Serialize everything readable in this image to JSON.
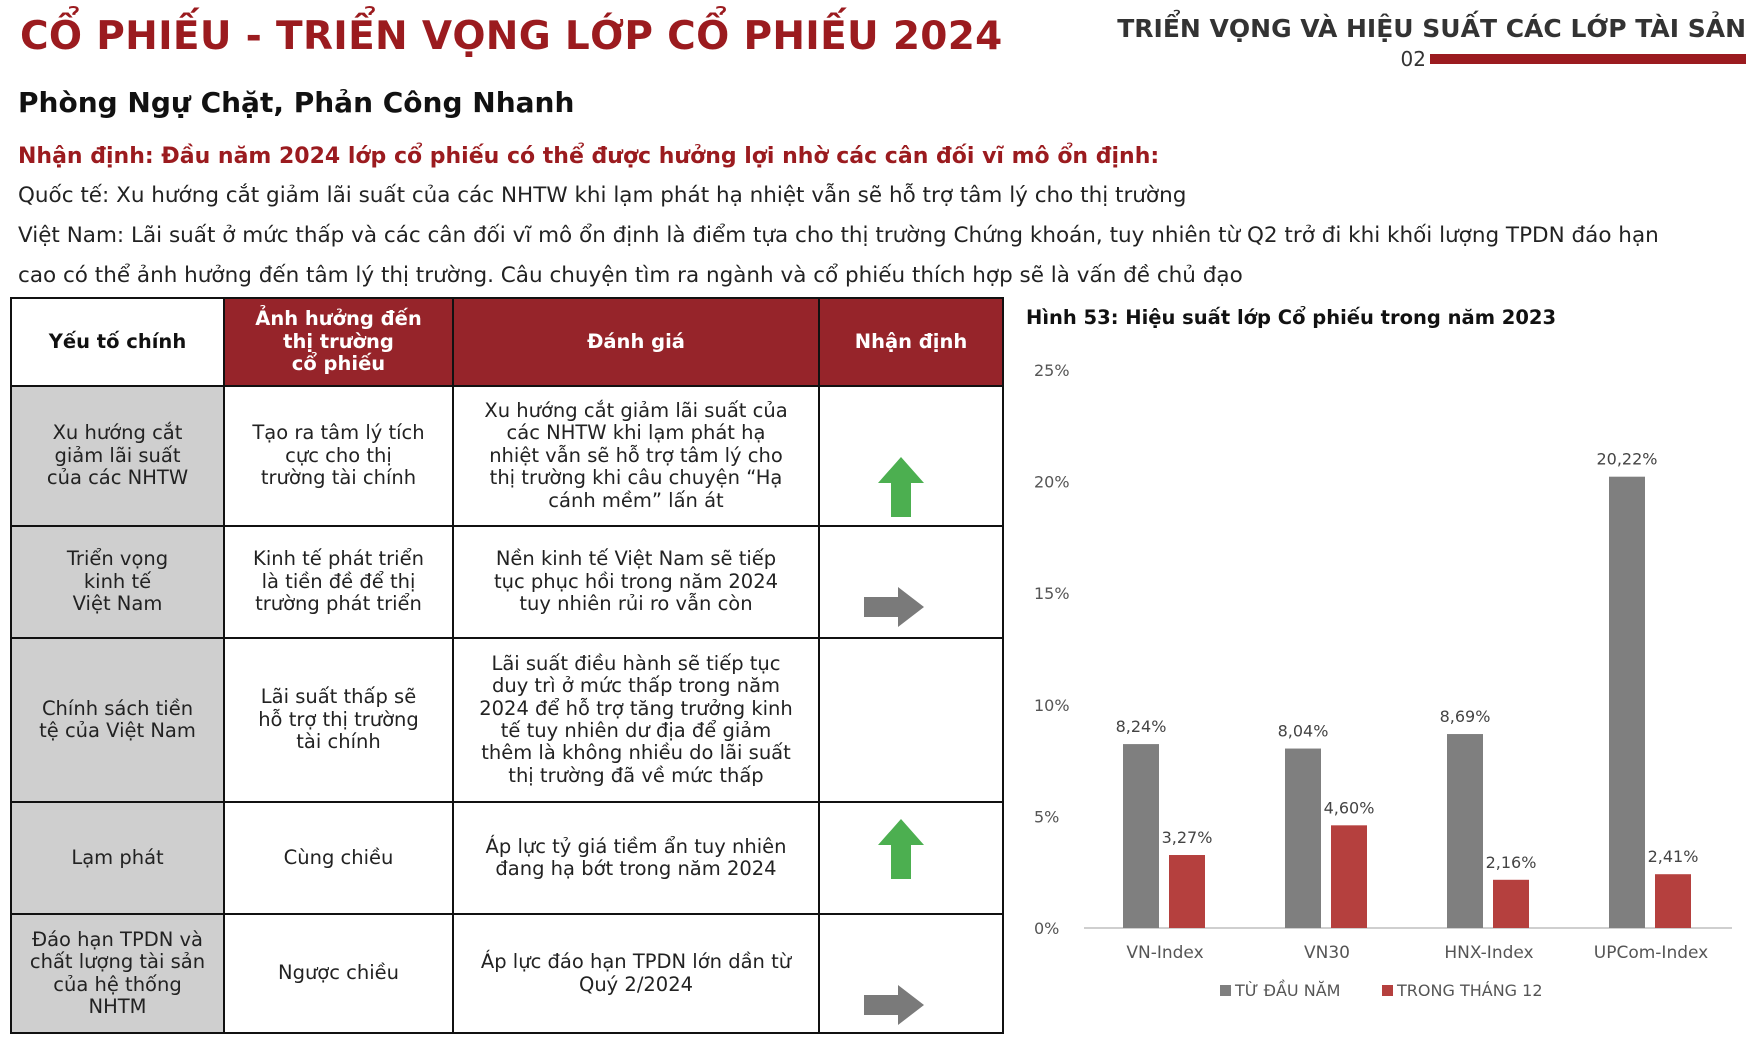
{
  "header": {
    "title": "CỔ PHIẾU - TRIỂN VỌNG LỚP CỔ PHIẾU 2024",
    "section_title": "TRIỂN VỌNG VÀ HIỆU SUẤT CÁC LỚP TÀI SẢN",
    "section_number": "02"
  },
  "subtitle": "Phòng Ngự Chặt, Phản Công Nhanh",
  "assessment": "Nhận định: Đầu năm 2024 lớp cổ phiếu có thể được hưởng lợi nhờ các cân đối vĩ mô ổn định:",
  "paragraphs": {
    "international": "Quốc tế: Xu hướng cắt giảm lãi suất của các NHTW khi lạm phát hạ nhiệt vẫn sẽ hỗ trợ tâm lý cho thị trường",
    "vietnam_line1": "Việt Nam: Lãi suất ở mức thấp và các cân đối vĩ mô ổn định là điểm tựa cho thị trường Chứng khoán, tuy nhiên từ Q2 trở đi khi khối lượng TPDN đáo hạn",
    "vietnam_line2": "cao có thể ảnh hưởng đến tâm lý thị trường. Câu chuyện tìm ra ngành và cổ phiếu thích hợp sẽ là vấn đề chủ đạo"
  },
  "table": {
    "headers": {
      "factor": "Yếu tố chính",
      "impact_l1": "Ảnh hưởng đến",
      "impact_l2": "thị trường",
      "impact_l3": "cổ phiếu",
      "evaluation": "Đánh giá",
      "view": "Nhận định"
    },
    "rows": [
      {
        "factor": [
          "Xu hướng cắt",
          "giảm lãi suất",
          "của các NHTW"
        ],
        "impact": [
          "Tạo ra tâm lý tích",
          "cực cho thị",
          "trường tài chính"
        ],
        "evaluation": [
          "Xu hướng cắt giảm lãi suất của",
          "các NHTW khi lạm phát hạ",
          "nhiệt vẫn sẽ hỗ trợ tâm lý cho",
          "thị trường khi câu chuyện “Hạ",
          "cánh mềm” lấn át"
        ],
        "view": "up-arrow-icon"
      },
      {
        "factor": [
          "Triển vọng",
          "kinh tế",
          "Việt Nam"
        ],
        "impact": [
          "Kinh tế phát triển",
          "là tiền đề để thị",
          "trường phát triển"
        ],
        "evaluation": [
          "Nền kinh tế Việt Nam sẽ tiếp",
          "tục phục hồi trong năm 2024",
          "tuy nhiên rủi ro vẫn còn"
        ],
        "view": "right-arrow-icon"
      },
      {
        "factor": [
          "Chính sách tiền",
          "tệ của Việt Nam"
        ],
        "impact": [
          "Lãi suất thấp sẽ",
          "hỗ trợ thị trường",
          "tài chính"
        ],
        "evaluation": [
          "Lãi suất điều hành sẽ tiếp tục",
          "duy trì ở mức thấp trong năm",
          "2024 để hỗ trợ tăng trưởng kinh",
          "tế tuy nhiên dư địa để giảm",
          "thêm là không nhiều do lãi suất",
          "thị trường đã về mức thấp"
        ],
        "view": ""
      },
      {
        "factor": [
          "Lạm phát"
        ],
        "impact": [
          "Cùng chiều"
        ],
        "evaluation": [
          "Áp lực tỷ giá tiềm ẩn tuy nhiên",
          "đang hạ bớt trong năm 2024"
        ],
        "view": "up-arrow-icon"
      },
      {
        "factor": [
          "Đáo hạn TPDN và",
          "chất lượng tài sản",
          "của hệ thống",
          "NHTM"
        ],
        "impact": [
          "Ngược chiều"
        ],
        "evaluation": [
          "Áp lực đáo hạn TPDN lớn dần từ",
          "Quý 2/2024"
        ],
        "view": "right-arrow-icon"
      }
    ]
  },
  "colors": {
    "brand_red": "#9b1b1f",
    "header_red": "#96242a",
    "factor_gray": "#cfcfcf",
    "arrow_green": "#4caf50",
    "arrow_gray": "#7a7a7a",
    "bar_gray": "#7f7f7f",
    "bar_red": "#b5403e"
  },
  "chart_data": {
    "type": "bar",
    "title": "Hình 53: Hiệu suất lớp Cổ phiếu trong năm 2023",
    "categories": [
      "VN-Index",
      "VN30",
      "HNX-Index",
      "UPCom-Index"
    ],
    "series": [
      {
        "name": "TỪ ĐẦU NĂM",
        "values": [
          8.24,
          8.04,
          8.69,
          20.22
        ],
        "labels": [
          "8,24%",
          "8,04%",
          "8,69%",
          "20,22%"
        ]
      },
      {
        "name": "TRONG THÁNG 12",
        "values": [
          3.27,
          4.6,
          2.16,
          2.41
        ],
        "labels": [
          "3,27%",
          "4,60%",
          "2,16%",
          "2,41%"
        ]
      }
    ],
    "ylim": [
      0,
      25
    ],
    "yticks": [
      "0%",
      "5%",
      "10%",
      "15%",
      "20%",
      "25%"
    ],
    "grid": false,
    "legend": "bottom"
  }
}
